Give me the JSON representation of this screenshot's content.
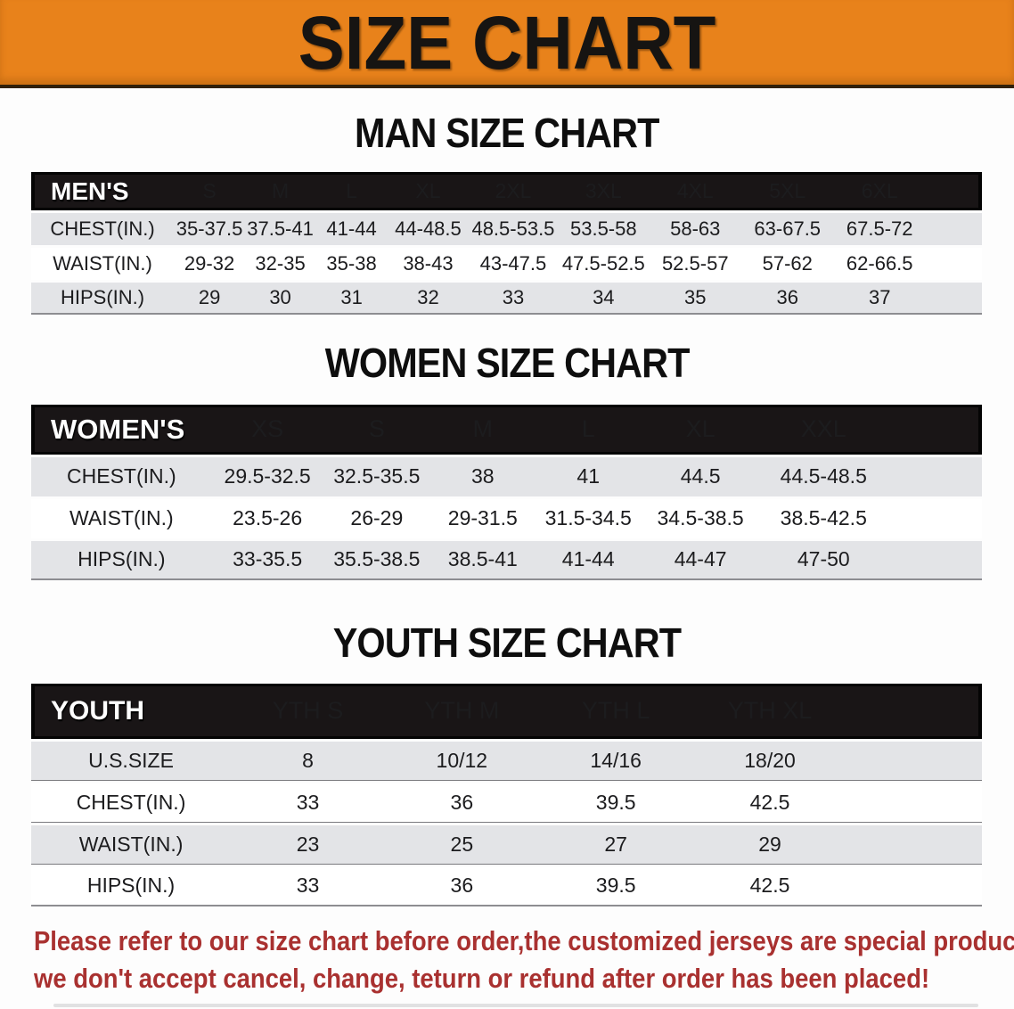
{
  "banner": {
    "title": "SIZE CHART",
    "bg_color": "#E8821B",
    "text_color": "#161412"
  },
  "sections": [
    {
      "heading": "MAN SIZE CHART",
      "header_label": "MEN'S",
      "columns": [
        "S",
        "M",
        "L",
        "XL",
        "2XL",
        "3XL",
        "4XL",
        "5XL",
        "6XL"
      ],
      "rows": [
        {
          "label": "CHEST(IN.)",
          "values": [
            "35-37.5",
            "37.5-41",
            "41-44",
            "44-48.5",
            "48.5-53.5",
            "53.5-58",
            "58-63",
            "63-67.5",
            "67.5-72"
          ]
        },
        {
          "label": "WAIST(IN.)",
          "values": [
            "29-32",
            "32-35",
            "35-38",
            "38-43",
            "43-47.5",
            "47.5-52.5",
            "52.5-57",
            "57-62",
            "62-66.5"
          ]
        },
        {
          "label": "HIPS(IN.)",
          "values": [
            "29",
            "30",
            "31",
            "32",
            "33",
            "34",
            "35",
            "36",
            "37"
          ]
        }
      ]
    },
    {
      "heading": "WOMEN SIZE CHART",
      "header_label": "WOMEN'S",
      "columns": [
        "XS",
        "S",
        "M",
        "L",
        "XL",
        "XXL"
      ],
      "rows": [
        {
          "label": "CHEST(IN.)",
          "values": [
            "29.5-32.5",
            "32.5-35.5",
            "38",
            "41",
            "44.5",
            "44.5-48.5"
          ]
        },
        {
          "label": "WAIST(IN.)",
          "values": [
            "23.5-26",
            "26-29",
            "29-31.5",
            "31.5-34.5",
            "34.5-38.5",
            "38.5-42.5"
          ]
        },
        {
          "label": "HIPS(IN.)",
          "values": [
            "33-35.5",
            "35.5-38.5",
            "38.5-41",
            "41-44",
            "44-47",
            "47-50"
          ]
        }
      ]
    },
    {
      "heading": "YOUTH SIZE CHART",
      "header_label": "YOUTH",
      "columns": [
        "YTH S",
        "YTH M",
        "YTH L",
        "YTH XL"
      ],
      "rows": [
        {
          "label": "U.S.SIZE",
          "values": [
            "8",
            "10/12",
            "14/16",
            "18/20"
          ]
        },
        {
          "label": "CHEST(IN.)",
          "values": [
            "33",
            "36",
            "39.5",
            "42.5"
          ]
        },
        {
          "label": "WAIST(IN.)",
          "values": [
            "23",
            "25",
            "27",
            "29"
          ]
        },
        {
          "label": "HIPS(IN.)",
          "values": [
            "33",
            "36",
            "39.5",
            "42.5"
          ]
        }
      ]
    }
  ],
  "disclaimer": {
    "line1": "Please refer to our size chart before order,the customized jerseys are special products,",
    "line2": "we don't accept cancel, change, teturn or refund after order has been placed!",
    "color": "#A93130"
  }
}
